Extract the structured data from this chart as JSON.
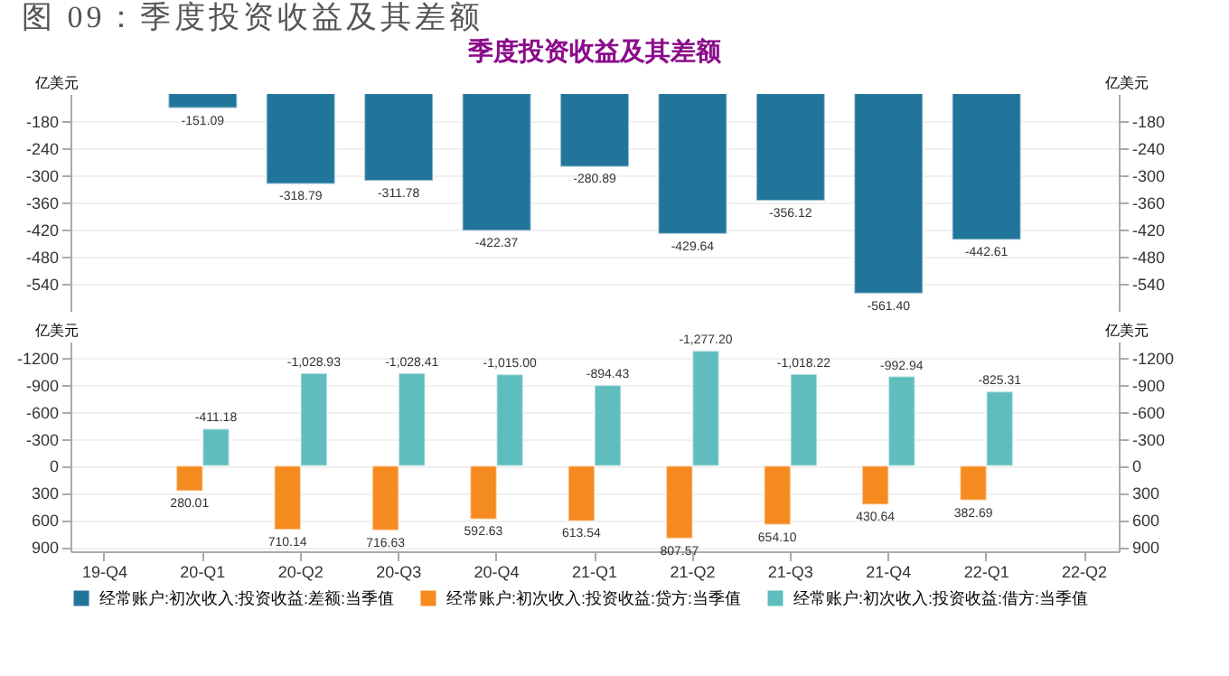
{
  "chart_data": [
    {
      "type": "bar",
      "title": "图 09：季度投资收益及其差额",
      "subtitle": "季度投资收益及其差额",
      "ylabel": "亿美元",
      "y2label": "亿美元",
      "categories": [
        null,
        null,
        null,
        null,
        null,
        null,
        null,
        null,
        null,
        null,
        null
      ],
      "series": [
        {
          "name": "经常账户:初次收入:投资收益:差额:当季值",
          "color": "#21759b",
          "values": [
            null,
            -151.09,
            -318.79,
            -311.78,
            -422.37,
            -280.89,
            -429.64,
            -356.12,
            -561.4,
            -442.61,
            null
          ],
          "value_labels": [
            null,
            "-151.09",
            "-318.79",
            "-311.78",
            "-422.37",
            "-280.89",
            "-429.64",
            "-356.12",
            "-561.40",
            "-442.61",
            null
          ]
        }
      ],
      "ylim": [
        -600,
        -120
      ],
      "yticks": [
        -180,
        -240,
        -300,
        -360,
        -420,
        -480,
        -540
      ],
      "y2lim": [
        -600,
        -120
      ],
      "y2ticks": [
        -180,
        -240,
        -300,
        -360,
        -420,
        -480,
        -540
      ],
      "grid": "y",
      "legend": "bottom",
      "tick_labels": "y"
    },
    {
      "type": "bar",
      "ylabel": "亿美元",
      "y2label": "亿美元",
      "categories": [
        "19-Q4",
        "20-Q1",
        "20-Q2",
        "20-Q3",
        "20-Q4",
        "21-Q1",
        "21-Q2",
        "21-Q3",
        "21-Q4",
        "22-Q1",
        "22-Q2"
      ],
      "series": [
        {
          "name": "经常账户:初次收入:投资收益:贷方:当季值",
          "color": "#f58a1f",
          "values": [
            null,
            280.01,
            710.14,
            716.63,
            592.63,
            613.54,
            807.57,
            654.1,
            430.64,
            382.69,
            null
          ],
          "value_labels": [
            null,
            "280.01",
            "710.14",
            "716.63",
            "592.63",
            "613.54",
            "807.57",
            "654.10",
            "430.64",
            "382.69",
            null
          ]
        },
        {
          "name": "经常账户:初次收入:投资收益:借方:当季值",
          "color": "#5fbdbd",
          "values": [
            null,
            -411.18,
            -1028.93,
            -1028.41,
            -1015.0,
            -894.43,
            -1277.2,
            -1018.22,
            -992.94,
            -825.31,
            null
          ],
          "value_labels": [
            null,
            "-411.18",
            "-1,028.93",
            "-1,028.41",
            "-1,015.00",
            "-894.43",
            "-1,277.20",
            "-1,018.22",
            "-992.94",
            "-825.31",
            null
          ]
        }
      ],
      "ylim": [
        950,
        -1380
      ],
      "yticks": [
        -1200,
        -900,
        -600,
        -300,
        0,
        300,
        600,
        900
      ],
      "y2ticks": [
        -1200,
        -900,
        -600,
        -300,
        0,
        300,
        600,
        900
      ],
      "y2lim": [
        950,
        -1380
      ],
      "grid": "y",
      "legend": "bottom"
    }
  ]
}
